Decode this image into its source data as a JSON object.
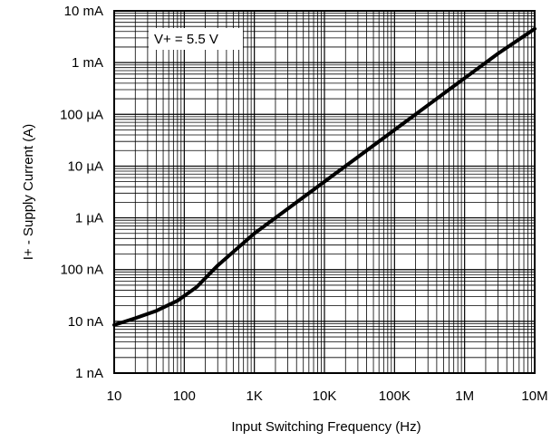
{
  "chart_data": {
    "type": "line",
    "title": "",
    "xlabel": "Input Switching Frequency (Hz)",
    "ylabel": "I+ - Supply Current (A)",
    "x_scale": "log",
    "y_scale": "log",
    "xlim": [
      10,
      10000000
    ],
    "ylim": [
      1e-09,
      0.01
    ],
    "grid": true,
    "x_ticks": [
      {
        "value": 10,
        "label": "10"
      },
      {
        "value": 100,
        "label": "100"
      },
      {
        "value": 1000,
        "label": "1K"
      },
      {
        "value": 10000,
        "label": "10K"
      },
      {
        "value": 100000,
        "label": "100K"
      },
      {
        "value": 1000000,
        "label": "1M"
      },
      {
        "value": 10000000,
        "label": "10M"
      }
    ],
    "y_ticks": [
      {
        "value": 1e-09,
        "label": "1 nA"
      },
      {
        "value": 1e-08,
        "label": "10 nA"
      },
      {
        "value": 1e-07,
        "label": "100 nA"
      },
      {
        "value": 1e-06,
        "label": "1 µA"
      },
      {
        "value": 1e-05,
        "label": "10 µA"
      },
      {
        "value": 0.0001,
        "label": "100 µA"
      },
      {
        "value": 0.001,
        "label": "1 mA"
      },
      {
        "value": 0.01,
        "label": "10 mA"
      }
    ],
    "annotation": "V+ = 5.5 V",
    "series": [
      {
        "x": [
          10,
          20,
          40,
          80,
          150,
          300,
          1000,
          3000,
          10000,
          30000,
          100000,
          300000,
          1000000,
          3000000,
          10000000
        ],
        "y": [
          8.5e-09,
          1.15e-08,
          1.6e-08,
          2.5e-08,
          4.6e-08,
          1.2e-07,
          5e-07,
          1.5e-06,
          5e-06,
          1.5e-05,
          5e-05,
          0.00015,
          0.0005,
          0.0015,
          0.0045
        ],
        "color": "#000000"
      }
    ]
  }
}
